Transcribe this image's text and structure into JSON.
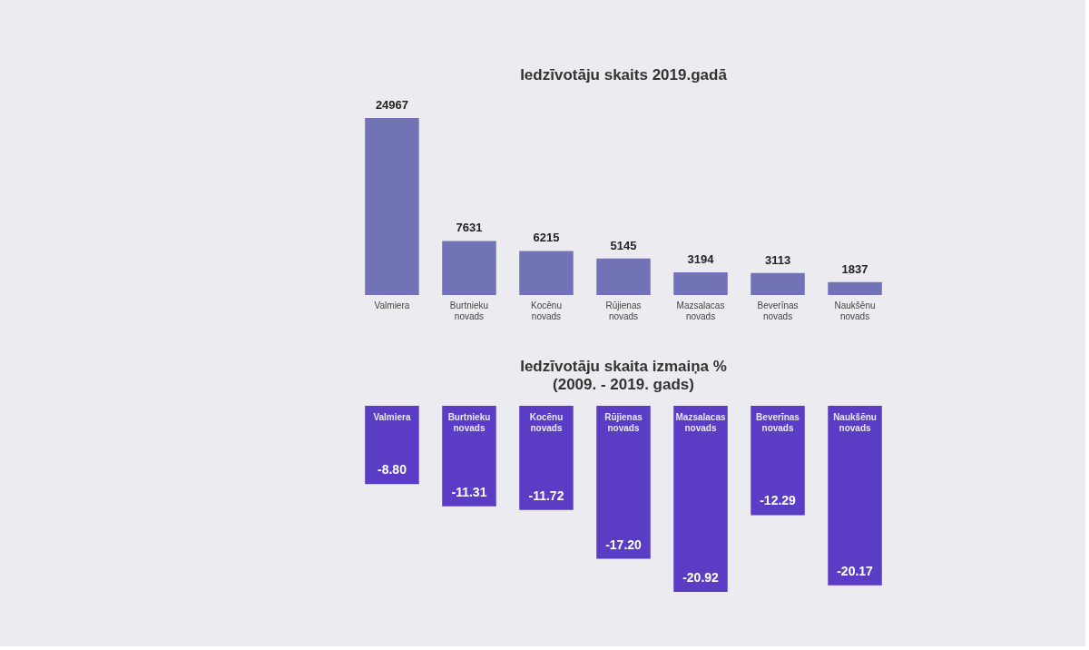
{
  "chart_data": [
    {
      "type": "bar",
      "title": "Iedzīvotāju skaits 2019.gadā",
      "categories": [
        "Valmiera",
        "Burtnieku novads",
        "Kocēnu novads",
        "Rūjienas novads",
        "Mazsalacas novads",
        "Beverīnas novads",
        "Naukšēnu novads"
      ],
      "values": [
        24967,
        7631,
        6215,
        5145,
        3194,
        3113,
        1837
      ],
      "color": "#7272b6",
      "data_labels": true
    },
    {
      "type": "bar",
      "title": "Iedzīvotāju skaita izmaiņa %",
      "subtitle": "(2009. - 2019. gads)",
      "categories": [
        "Valmiera",
        "Burtnieku novads",
        "Kocēnu novads",
        "Rūjienas novads",
        "Mazsalacas novads",
        "Beverīnas novads",
        "Naukšēnu novads"
      ],
      "values": [
        -8.8,
        -11.31,
        -11.72,
        -17.2,
        -20.92,
        -12.29,
        -20.17
      ],
      "value_labels": [
        "-8.80",
        "-11.31",
        "-11.72",
        "-17.20",
        "-20.92",
        "-12.29",
        "-20.17"
      ],
      "color": "#5a3dc4"
    }
  ]
}
